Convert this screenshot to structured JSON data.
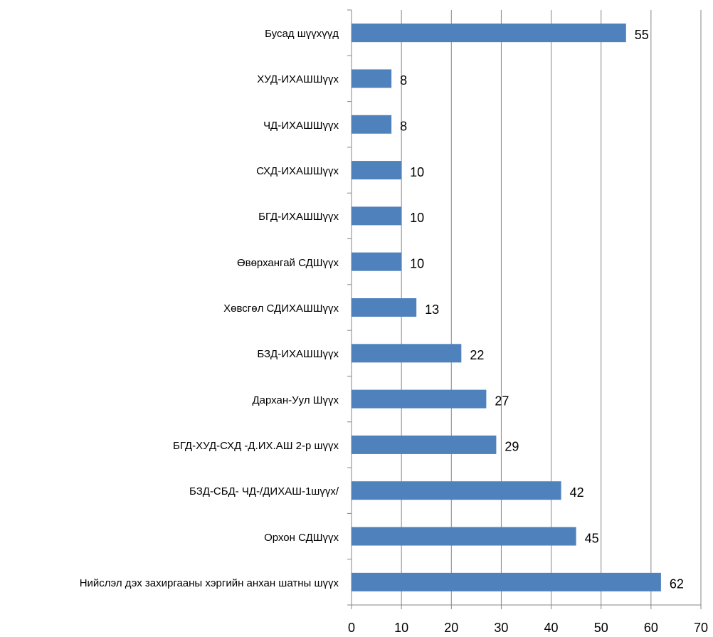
{
  "chart_data": {
    "type": "barh",
    "categories": [
      "Бусад шүүхүүд",
      "ХУД-ИХАШШүүх",
      "ЧД-ИХАШШүүх",
      "СХД-ИХАШШүүх",
      "БГД-ИХАШШүүх",
      "Өвөрхангай СДШүүх",
      "Хөвсгөл СДИХАШШүүх",
      "БЗД-ИХАШШүүх",
      "Дархан-Уул Шүүх",
      "БГД-ХУД-СХД -Д.ИХ.АШ 2-р шүүх",
      "БЗД-СБД- ЧД-/ДИХАШ-1шүүх/",
      "Орхон СДШүүх",
      "Нийслэл дэх захиргааны хэргийн анхан шатны шүүх"
    ],
    "values": [
      55,
      8,
      8,
      10,
      10,
      10,
      13,
      22,
      27,
      29,
      42,
      45,
      62
    ],
    "color": "#4f81bd",
    "xlim": [
      0,
      70
    ],
    "xticks": [
      0,
      10,
      20,
      30,
      40,
      50,
      60,
      70
    ],
    "grid": true
  }
}
